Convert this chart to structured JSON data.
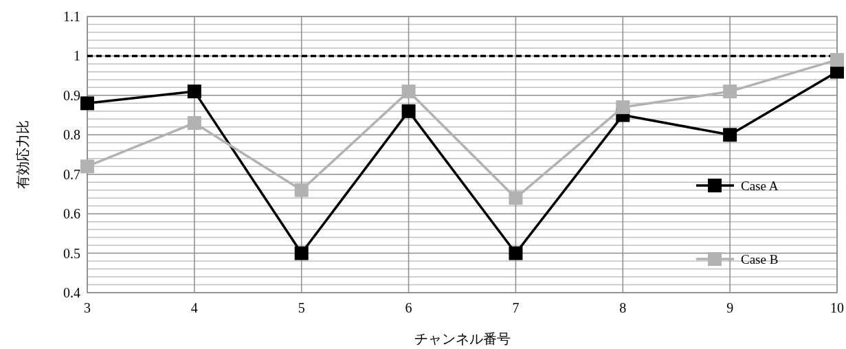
{
  "chart_data": {
    "type": "line",
    "xlabel": "チャンネル番号",
    "ylabel": "有効応力比",
    "x": [
      3,
      4,
      5,
      6,
      7,
      8,
      9,
      10
    ],
    "series": [
      {
        "name": "Case A",
        "color": "#000000",
        "values": [
          0.88,
          0.91,
          0.5,
          0.86,
          0.5,
          0.85,
          0.8,
          0.96
        ]
      },
      {
        "name": "Case B",
        "color": "#b2b2b2",
        "values": [
          0.72,
          0.83,
          0.66,
          0.91,
          0.64,
          0.87,
          0.91,
          0.99
        ]
      }
    ],
    "xlim": [
      3,
      10
    ],
    "xticks": [
      3,
      4,
      5,
      6,
      7,
      8,
      9,
      10
    ],
    "ylim": [
      0.4,
      1.1
    ],
    "yticks": [
      0.4,
      {
        "value": 0.42,
        "label": null
      },
      {
        "value": 0.44,
        "label": null
      },
      {
        "value": 0.46,
        "label": null
      },
      {
        "value": 0.48,
        "label": null
      },
      0.5,
      {
        "value": 0.52,
        "label": null
      },
      {
        "value": 0.54,
        "label": null
      },
      {
        "value": 0.56,
        "label": null
      },
      {
        "value": 0.58,
        "label": null
      },
      0.6,
      {
        "value": 0.62,
        "label": null
      },
      {
        "value": 0.64,
        "label": null
      },
      {
        "value": 0.66,
        "label": null
      },
      {
        "value": 0.68,
        "label": null
      },
      0.7,
      {
        "value": 0.72,
        "label": null
      },
      {
        "value": 0.74,
        "label": null
      },
      {
        "value": 0.76,
        "label": null
      },
      {
        "value": 0.78,
        "label": null
      },
      0.8,
      {
        "value": 0.82,
        "label": null
      },
      {
        "value": 0.84,
        "label": null
      },
      {
        "value": 0.86,
        "label": null
      },
      {
        "value": 0.88,
        "label": null
      },
      0.9,
      {
        "value": 0.92,
        "label": null
      },
      {
        "value": 0.94,
        "label": null
      },
      {
        "value": 0.96,
        "label": null
      },
      {
        "value": 0.98,
        "label": null
      },
      1,
      {
        "value": 1.02,
        "label": null
      },
      {
        "value": 1.04,
        "label": null
      },
      {
        "value": 1.06,
        "label": null
      },
      {
        "value": 1.08,
        "label": null
      },
      1.1
    ],
    "ref_lines": [
      {
        "axis": "y",
        "value": 1,
        "label": null,
        "color": "#000000",
        "line_style": "dashed"
      }
    ],
    "grid": true,
    "legend": "right",
    "marker": "square",
    "line_style": "solid"
  }
}
